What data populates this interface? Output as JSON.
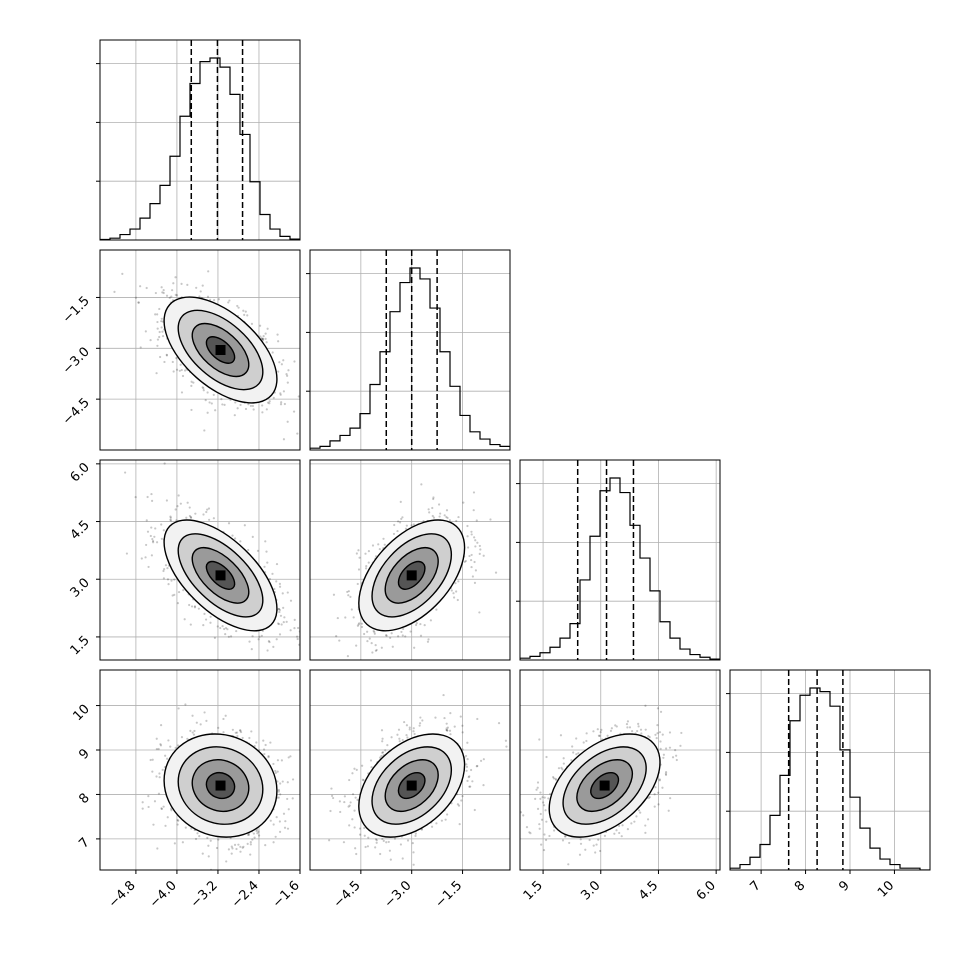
{
  "figure": {
    "type": "corner-plot",
    "dimensions": 4,
    "title": ""
  },
  "chart_data": {
    "type": "corner",
    "parameters": [
      {
        "range": [
          -5.5,
          -1.6
        ],
        "ticks": [
          -4.8,
          -4.0,
          -3.2,
          -2.4,
          -1.6
        ],
        "tick_labels": [
          "−4.8",
          "−4.0",
          "−3.2",
          "−2.4",
          "−1.6"
        ]
      },
      {
        "range": [
          -6.0,
          -0.1
        ],
        "ticks": [
          -4.5,
          -3.0,
          -1.5
        ],
        "tick_labels": [
          "−4.5",
          "−3.0",
          "−1.5"
        ]
      },
      {
        "range": [
          0.9,
          6.1
        ],
        "ticks": [
          1.5,
          3.0,
          4.5,
          6.0
        ],
        "tick_labels": [
          "1.5",
          "3.0",
          "4.5",
          "6.0"
        ]
      },
      {
        "range": [
          6.3,
          10.8
        ],
        "ticks": [
          7,
          8,
          9,
          10
        ],
        "tick_labels": [
          "7",
          "8",
          "9",
          "10"
        ]
      }
    ],
    "histograms": [
      {
        "quantiles": [
          -3.72,
          -3.21,
          -2.72
        ],
        "bins": [
          -5.5,
          -5.305,
          -5.11,
          -4.915,
          -4.72,
          -4.525,
          -4.33,
          -4.135,
          -3.94,
          -3.745,
          -3.55,
          -3.355,
          -3.16,
          -2.965,
          -2.77,
          -2.575,
          -2.38,
          -2.185,
          -1.99,
          -1.795,
          -1.6
        ],
        "counts": [
          0.003,
          0.01,
          0.03,
          0.06,
          0.12,
          0.2,
          0.3,
          0.46,
          0.68,
          0.86,
          0.98,
          1.0,
          0.95,
          0.8,
          0.58,
          0.32,
          0.14,
          0.06,
          0.02,
          0.005
        ]
      },
      {
        "quantiles": [
          -3.75,
          -3.0,
          -2.25
        ],
        "bins": [
          -6.0,
          -5.705,
          -5.41,
          -5.115,
          -4.82,
          -4.525,
          -4.23,
          -3.935,
          -3.64,
          -3.345,
          -3.05,
          -2.755,
          -2.46,
          -2.165,
          -1.87,
          -1.575,
          -1.28,
          -0.985,
          -0.69,
          -0.395,
          -0.1
        ],
        "counts": [
          0.01,
          0.02,
          0.05,
          0.08,
          0.12,
          0.2,
          0.36,
          0.54,
          0.76,
          0.92,
          1.0,
          0.94,
          0.78,
          0.54,
          0.35,
          0.19,
          0.1,
          0.06,
          0.03,
          0.02
        ]
      },
      {
        "quantiles": [
          2.4,
          3.15,
          3.85
        ],
        "bins": [
          0.9,
          1.16,
          1.42,
          1.68,
          1.94,
          2.2,
          2.46,
          2.72,
          2.98,
          3.24,
          3.5,
          3.76,
          4.02,
          4.28,
          4.54,
          4.8,
          5.06,
          5.32,
          5.58,
          5.84,
          6.1
        ],
        "counts": [
          0.01,
          0.02,
          0.04,
          0.07,
          0.12,
          0.2,
          0.44,
          0.68,
          0.93,
          1.0,
          0.92,
          0.74,
          0.56,
          0.38,
          0.21,
          0.12,
          0.06,
          0.03,
          0.015,
          0.005
        ]
      },
      {
        "quantiles": [
          7.62,
          8.26,
          8.84
        ],
        "bins": [
          6.3,
          6.525,
          6.75,
          6.975,
          7.2,
          7.425,
          7.65,
          7.875,
          8.1,
          8.325,
          8.55,
          8.775,
          9.0,
          9.225,
          9.45,
          9.675,
          9.9,
          10.125,
          10.35,
          10.575,
          10.8
        ],
        "counts": [
          0.01,
          0.03,
          0.07,
          0.14,
          0.3,
          0.52,
          0.82,
          0.96,
          1.0,
          0.98,
          0.9,
          0.66,
          0.4,
          0.23,
          0.12,
          0.06,
          0.03,
          0.01,
          0.01,
          0.0
        ]
      }
    ],
    "correlations": [
      {
        "pair": [
          1,
          0
        ],
        "mean_x": -3.15,
        "mean_y": -3.05,
        "sd_x": 0.55,
        "sd_y": 0.78,
        "rho": -0.55
      },
      {
        "pair": [
          2,
          0
        ],
        "mean_x": -3.15,
        "mean_y": 3.1,
        "sd_x": 0.55,
        "sd_y": 0.72,
        "rho": -0.6
      },
      {
        "pair": [
          2,
          1
        ],
        "mean_x": -3.0,
        "mean_y": 3.1,
        "sd_x": 0.78,
        "sd_y": 0.72,
        "rho": 0.5
      },
      {
        "pair": [
          3,
          0
        ],
        "mean_x": -3.15,
        "mean_y": 8.2,
        "sd_x": 0.55,
        "sd_y": 0.58,
        "rho": -0.1
      },
      {
        "pair": [
          3,
          1
        ],
        "mean_x": -3.0,
        "mean_y": 8.2,
        "sd_x": 0.78,
        "sd_y": 0.58,
        "rho": 0.4
      },
      {
        "pair": [
          3,
          2
        ],
        "mean_x": 3.1,
        "mean_y": 8.2,
        "sd_x": 0.72,
        "sd_y": 0.58,
        "rho": 0.45
      }
    ],
    "contour_levels": [
      0.5,
      1.0,
      1.5,
      2.0
    ],
    "grid": true,
    "colors": {
      "line": "#000000",
      "grid": "#b0b0b0",
      "points": "#000000"
    }
  }
}
